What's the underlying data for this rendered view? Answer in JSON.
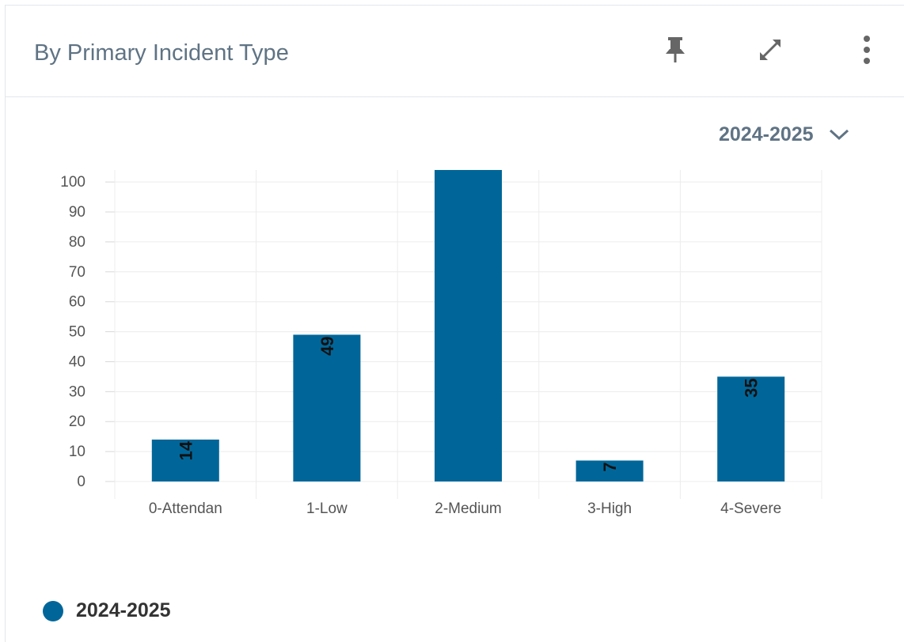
{
  "card": {
    "title": "By Primary Incident Type",
    "pin_icon": "pin-icon",
    "expand_icon": "expand-icon",
    "more_icon": "more-vertical-icon"
  },
  "year_selector": {
    "value": "2024-2025",
    "icon": "chevron-down-icon"
  },
  "legend": {
    "label": "2024-2025",
    "color": "#006699"
  },
  "chart_data": {
    "type": "bar",
    "categories": [
      "0-Attendan",
      "1-Low",
      "2-Medium",
      "3-High",
      "4-Severe"
    ],
    "series": [
      {
        "name": "2024-2025",
        "values": [
          14,
          49,
          105,
          7,
          35
        ],
        "labels": [
          "14",
          "49",
          "",
          "7",
          "35"
        ]
      }
    ],
    "y_ticks": [
      "0",
      "10",
      "20",
      "30",
      "40",
      "50",
      "60",
      "70",
      "80",
      "90",
      "100"
    ],
    "ylim": [
      0,
      104
    ],
    "grid": true,
    "bar_color": "#006699",
    "legend_position": "bottom-left"
  }
}
